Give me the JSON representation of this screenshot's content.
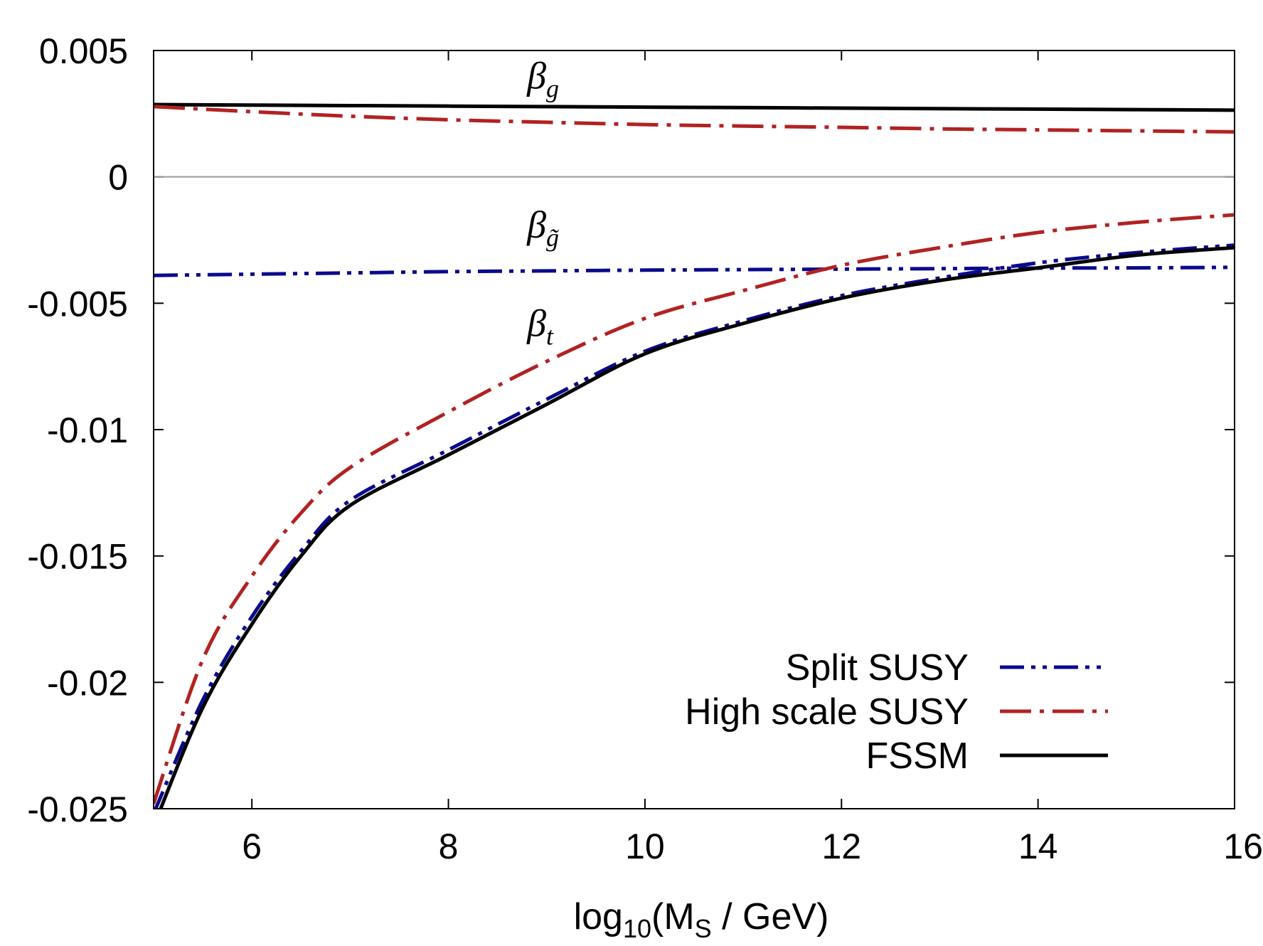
{
  "chart_data": {
    "type": "line",
    "title": "",
    "xlabel": {
      "prefix": "log",
      "prefix_sub": "10",
      "main": "(M",
      "main_sub": "S",
      "suffix": " / GeV)"
    },
    "ylabel": "",
    "xlim": [
      5,
      16
    ],
    "ylim": [
      -0.025,
      0.005
    ],
    "x_ticks": [
      6,
      8,
      10,
      12,
      14,
      16
    ],
    "x_tick_labels": [
      "6",
      "8",
      "10",
      "12",
      "14",
      "16"
    ],
    "y_ticks": [
      0.005,
      0,
      -0.005,
      -0.01,
      -0.015,
      -0.02,
      -0.025
    ],
    "y_tick_labels": [
      "0.005",
      "0",
      "-0.005",
      "-0.01",
      "-0.015",
      "-0.02",
      "-0.025"
    ],
    "zero_line": true,
    "legend_position": "bottom-right",
    "legend": [
      {
        "name": "Split SUSY",
        "color": "#0a0a8c",
        "style": "dash-dot-dot"
      },
      {
        "name": "High scale SUSY",
        "color": "#b22222",
        "style": "dash-dot"
      },
      {
        "name": "FSSM",
        "color": "#000000",
        "style": "solid"
      }
    ],
    "annotations": [
      {
        "base": "β",
        "sub": "g",
        "x": 8.8,
        "y": 0.0035
      },
      {
        "base": "β",
        "sub": "g̃",
        "x": 8.8,
        "y": -0.0024
      },
      {
        "base": "β",
        "sub": "t",
        "x": 8.8,
        "y": -0.0063
      }
    ],
    "series": [
      {
        "name": "FSSM β_g",
        "legend": "FSSM",
        "x": [
          5,
          6,
          7,
          8,
          9,
          10,
          11,
          12,
          13,
          14,
          15,
          16
        ],
        "y": [
          0.00286,
          0.00284,
          0.00282,
          0.0028,
          0.00278,
          0.00276,
          0.00274,
          0.00272,
          0.0027,
          0.00268,
          0.00266,
          0.00264
        ]
      },
      {
        "name": "High scale SUSY β_g",
        "legend": "High scale SUSY",
        "x": [
          5,
          6,
          7,
          8,
          9,
          10,
          11,
          12,
          13,
          14,
          15,
          16
        ],
        "y": [
          0.00278,
          0.00258,
          0.0024,
          0.00226,
          0.00216,
          0.00207,
          0.00201,
          0.00196,
          0.0019,
          0.00186,
          0.00182,
          0.00178
        ]
      },
      {
        "name": "Split SUSY β_g̃",
        "legend": "Split SUSY",
        "x": [
          5,
          6,
          7,
          8,
          9,
          10,
          11,
          12,
          13,
          14,
          15,
          16
        ],
        "y": [
          -0.0039,
          -0.00385,
          -0.0038,
          -0.00375,
          -0.00372,
          -0.00369,
          -0.00367,
          -0.00365,
          -0.00363,
          -0.00361,
          -0.0036,
          -0.00358
        ]
      },
      {
        "name": "High scale SUSY β_t",
        "legend": "High scale SUSY",
        "x": [
          5,
          5.5,
          6,
          6.5,
          7,
          8,
          9,
          10,
          11,
          12,
          13,
          14,
          15,
          16
        ],
        "y": [
          -0.0248,
          -0.0191,
          -0.0158,
          -0.0133,
          -0.0115,
          -0.0093,
          -0.0073,
          -0.0056,
          -0.0045,
          -0.0035,
          -0.0028,
          -0.0022,
          -0.0018,
          -0.0015
        ]
      },
      {
        "name": "Split SUSY β_t",
        "legend": "Split SUSY",
        "x": [
          5,
          5.5,
          6,
          6.5,
          7,
          8,
          9,
          10,
          11,
          12,
          13,
          14,
          15,
          16
        ],
        "y": [
          -0.0252,
          -0.0207,
          -0.0174,
          -0.0148,
          -0.0128,
          -0.0108,
          -0.0088,
          -0.0069,
          -0.0057,
          -0.0047,
          -0.004,
          -0.0034,
          -0.003,
          -0.0027
        ]
      },
      {
        "name": "FSSM β_t",
        "legend": "FSSM",
        "x": [
          5,
          5.5,
          6,
          6.5,
          7,
          8,
          9,
          10,
          11,
          12,
          13,
          14,
          15,
          16
        ],
        "y": [
          -0.0257,
          -0.021,
          -0.0177,
          -0.015,
          -0.013,
          -0.011,
          -0.009,
          -0.007,
          -0.0058,
          -0.0048,
          -0.0041,
          -0.0036,
          -0.0031,
          -0.0028
        ]
      }
    ]
  }
}
